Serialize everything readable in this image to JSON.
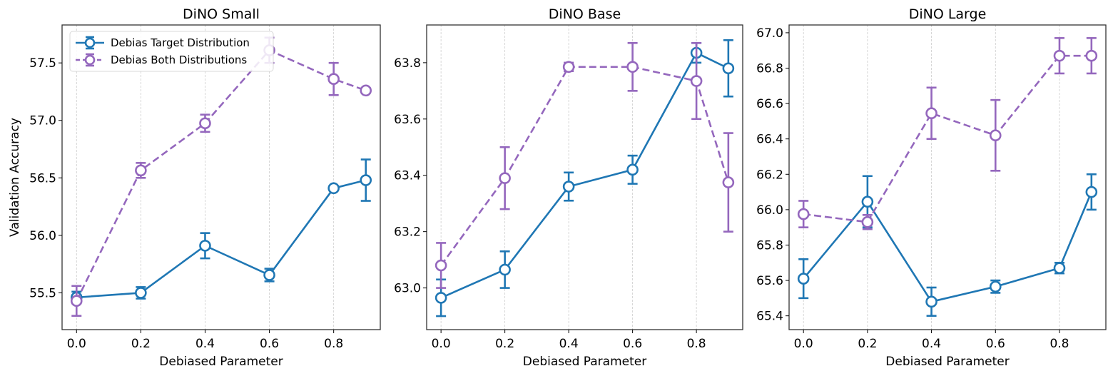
{
  "colors": {
    "target": "#1f77b4",
    "both": "#9467bd",
    "grid": "#cccccc",
    "frame": "#333333"
  },
  "chart_data": [
    {
      "type": "line",
      "title": "DiNO Small",
      "xlabel": "Debiased Parameter",
      "ylabel": "Validation Accuracy",
      "x": [
        0.0,
        0.2,
        0.4,
        0.6,
        0.8,
        0.9
      ],
      "xticks": [
        "0.0",
        "0.2",
        "0.4",
        "0.6",
        "0.8"
      ],
      "xtick_values": [
        0.0,
        0.2,
        0.4,
        0.6,
        0.8
      ],
      "xlim": [
        -0.045,
        0.945
      ],
      "yticks": [
        "55.5",
        "56.0",
        "56.5",
        "57.0",
        "57.5"
      ],
      "ytick_values": [
        55.5,
        56.0,
        56.5,
        57.0,
        57.5
      ],
      "ylim": [
        55.18,
        57.83
      ],
      "grid": "x-dashed",
      "legend": {
        "placement": "upper-left",
        "entries": [
          "Debias Target Distribution",
          "Debias Both Distributions"
        ]
      },
      "series": [
        {
          "name": "Debias Target Distribution",
          "style": "solid",
          "values": [
            55.46,
            55.5,
            55.91,
            55.655,
            56.41,
            56.48
          ],
          "err_low": [
            55.41,
            55.45,
            55.8,
            55.6,
            56.41,
            56.3
          ],
          "err_high": [
            55.51,
            55.55,
            56.02,
            55.71,
            56.41,
            56.66
          ]
        },
        {
          "name": "Debias Both Distributions",
          "style": "dashed",
          "values": [
            55.43,
            56.565,
            56.975,
            57.61,
            57.36,
            57.26
          ],
          "err_low": [
            55.3,
            56.5,
            56.9,
            57.5,
            57.22,
            57.24
          ],
          "err_high": [
            55.56,
            56.63,
            57.05,
            57.72,
            57.5,
            57.28
          ]
        }
      ]
    },
    {
      "type": "line",
      "title": "DiNO Base",
      "xlabel": "Debiased Parameter",
      "x": [
        0.0,
        0.2,
        0.4,
        0.6,
        0.8,
        0.9
      ],
      "xticks": [
        "0.0",
        "0.2",
        "0.4",
        "0.6",
        "0.8"
      ],
      "xtick_values": [
        0.0,
        0.2,
        0.4,
        0.6,
        0.8
      ],
      "xlim": [
        -0.045,
        0.945
      ],
      "yticks": [
        "63.0",
        "63.2",
        "63.4",
        "63.6",
        "63.8"
      ],
      "ytick_values": [
        63.0,
        63.2,
        63.4,
        63.6,
        63.8
      ],
      "ylim": [
        62.852,
        63.934
      ],
      "grid": "x-dashed",
      "series": [
        {
          "name": "Debias Target Distribution",
          "style": "solid",
          "values": [
            62.965,
            63.065,
            63.36,
            63.42,
            63.835,
            63.78
          ],
          "err_low": [
            62.9,
            63.0,
            63.31,
            63.37,
            63.8,
            63.68
          ],
          "err_high": [
            63.03,
            63.13,
            63.41,
            63.47,
            63.87,
            63.88
          ]
        },
        {
          "name": "Debias Both Distributions",
          "style": "dashed",
          "values": [
            63.08,
            63.39,
            63.785,
            63.785,
            63.735,
            63.375
          ],
          "err_low": [
            63.0,
            63.28,
            63.77,
            63.7,
            63.6,
            63.2
          ],
          "err_high": [
            63.16,
            63.5,
            63.8,
            63.87,
            63.87,
            63.55
          ]
        }
      ]
    },
    {
      "type": "line",
      "title": "DiNO Large",
      "xlabel": "Debiased Parameter",
      "x": [
        0.0,
        0.2,
        0.4,
        0.6,
        0.8,
        0.9
      ],
      "xticks": [
        "0.0",
        "0.2",
        "0.4",
        "0.6",
        "0.8"
      ],
      "xtick_values": [
        0.0,
        0.2,
        0.4,
        0.6,
        0.8
      ],
      "xlim": [
        -0.045,
        0.945
      ],
      "yticks": [
        "65.4",
        "65.6",
        "65.8",
        "66.0",
        "66.2",
        "66.4",
        "66.6",
        "66.8",
        "67.0"
      ],
      "ytick_values": [
        65.4,
        65.6,
        65.8,
        66.0,
        66.2,
        66.4,
        66.6,
        66.8,
        67.0
      ],
      "ylim": [
        65.322,
        67.044
      ],
      "grid": "x-dashed",
      "series": [
        {
          "name": "Debias Target Distribution",
          "style": "solid",
          "values": [
            65.61,
            66.045,
            65.48,
            65.565,
            65.67,
            66.1
          ],
          "err_low": [
            65.5,
            65.9,
            65.4,
            65.53,
            65.64,
            66.0
          ],
          "err_high": [
            65.72,
            66.19,
            65.56,
            65.6,
            65.7,
            66.2
          ]
        },
        {
          "name": "Debias Both Distributions",
          "style": "dashed",
          "values": [
            65.975,
            65.93,
            66.545,
            66.42,
            66.87,
            66.87
          ],
          "err_low": [
            65.9,
            65.89,
            66.4,
            66.22,
            66.77,
            66.77
          ],
          "err_high": [
            66.05,
            65.97,
            66.69,
            66.62,
            66.97,
            66.97
          ]
        }
      ]
    }
  ]
}
